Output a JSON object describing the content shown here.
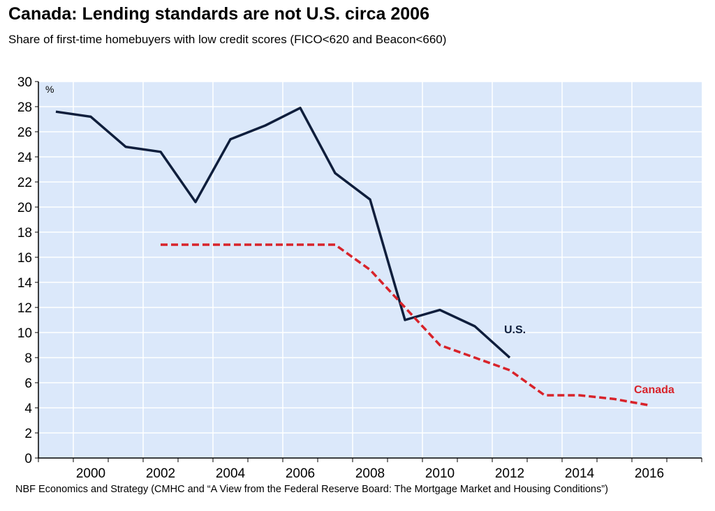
{
  "chart_data": {
    "type": "line",
    "title": "Canada: Lending standards are not U.S. circa 2006",
    "subtitle": "Share of first-time homebuyers with low credit scores (FICO<620 and Beacon<660)",
    "source": "NBF Economics and Strategy (CMHC and “A View from the Federal Reserve Board: The Mortgage Market and Housing Conditions”)",
    "ylabel": "%",
    "ylim": [
      0,
      30
    ],
    "yticks": [
      0,
      2,
      4,
      6,
      8,
      10,
      12,
      14,
      16,
      18,
      20,
      22,
      24,
      26,
      28,
      30
    ],
    "xlim": [
      1999,
      2017
    ],
    "xticks": [
      2000,
      2002,
      2004,
      2006,
      2008,
      2010,
      2012,
      2014,
      2016
    ],
    "grid": true,
    "background_color": "#dbe8fa",
    "series": [
      {
        "name": "U.S.",
        "color": "#0f1e3c",
        "style": "solid",
        "x": [
          1999,
          2000,
          2001,
          2002,
          2003,
          2004,
          2005,
          2006,
          2007,
          2008,
          2009,
          2010,
          2011,
          2012
        ],
        "values": [
          27.6,
          27.2,
          24.8,
          24.4,
          20.4,
          25.4,
          26.5,
          27.9,
          22.7,
          20.6,
          11.0,
          11.8,
          10.5,
          8.0
        ]
      },
      {
        "name": "Canada",
        "color": "#d8232a",
        "style": "dashed",
        "x": [
          2002,
          2003,
          2004,
          2005,
          2006,
          2007,
          2008,
          2009,
          2010,
          2011,
          2012,
          2013,
          2014,
          2015,
          2016
        ],
        "values": [
          17,
          17,
          17,
          17,
          17,
          17,
          15,
          12,
          9,
          8,
          7,
          5,
          5,
          4.7,
          4.2
        ]
      }
    ]
  }
}
